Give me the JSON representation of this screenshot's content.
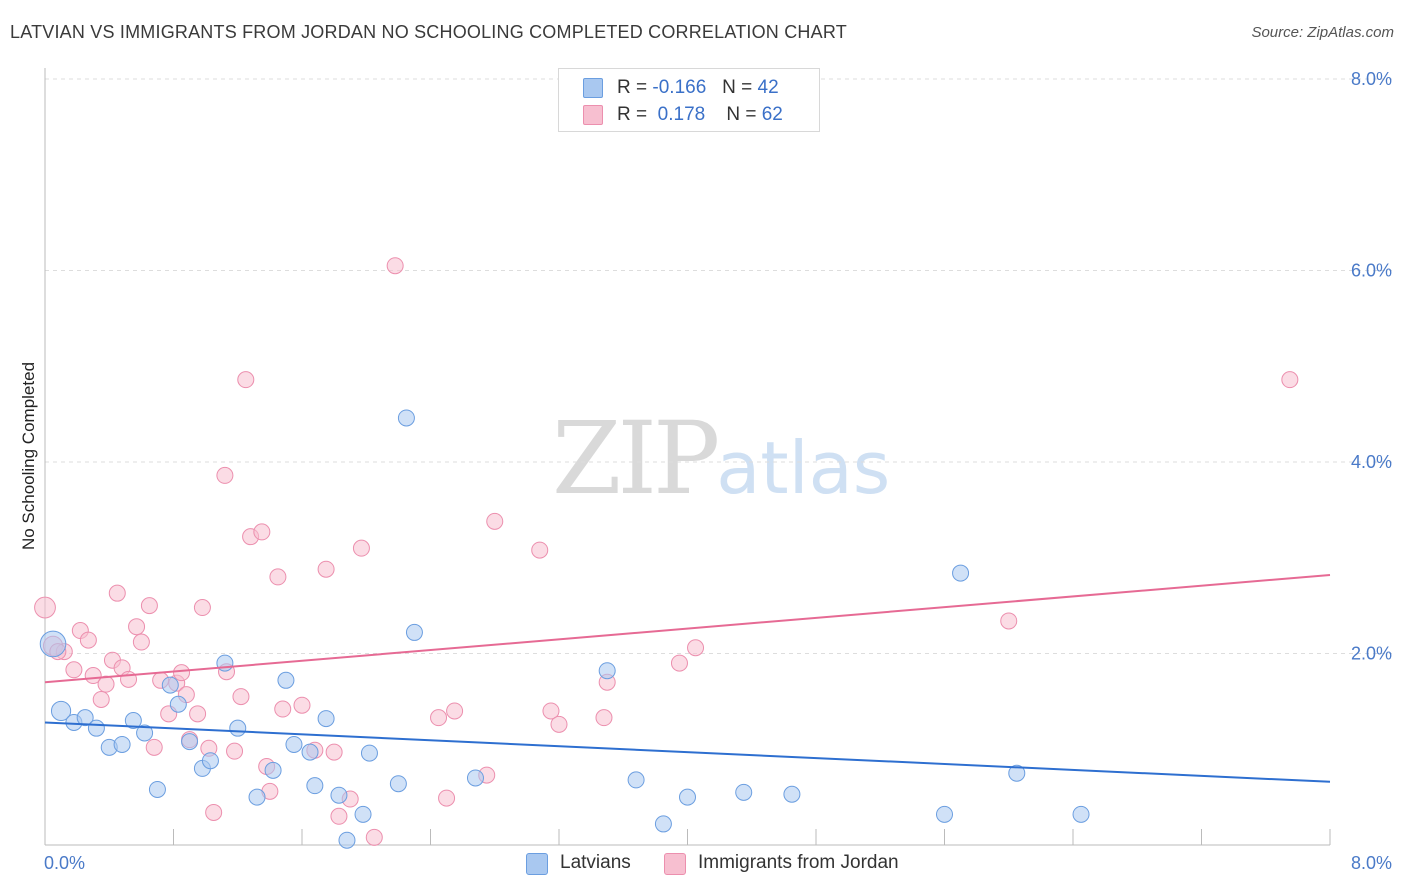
{
  "title": "LATVIAN VS IMMIGRANTS FROM JORDAN NO SCHOOLING COMPLETED CORRELATION CHART",
  "source": "Source: ZipAtlas.com",
  "watermark": {
    "zip": "ZIP",
    "atlas": "atlas"
  },
  "legend": {
    "row1": {
      "r_label": "R =",
      "r_value": "-0.166",
      "n_label": "N =",
      "n_value": "42"
    },
    "row2": {
      "r_label": "R =",
      "r_value": "0.178",
      "n_label": "N =",
      "n_value": "62"
    }
  },
  "bottom_legend": {
    "series1": "Latvians",
    "series2": "Immigrants from Jordan"
  },
  "colors": {
    "latvians_fill": "#a9c8f0",
    "latvians_stroke": "#6b9ee0",
    "latvians_line": "#2e6fd0",
    "jordan_fill": "#f7bfd0",
    "jordan_stroke": "#ec8fae",
    "jordan_line": "#e66a94",
    "tick_text": "#4a7ac8",
    "grid": "#dddddd"
  },
  "chart_data": {
    "type": "scatter",
    "title": "LATVIAN VS IMMIGRANTS FROM JORDAN NO SCHOOLING COMPLETED CORRELATION CHART",
    "xlabel": "",
    "ylabel": "No Schooling Completed",
    "xlim": [
      0,
      8.0
    ],
    "ylim": [
      0,
      8.0
    ],
    "x_tick_labels": [
      "0.0%",
      "8.0%"
    ],
    "y_ticks": [
      2.0,
      4.0,
      6.0,
      8.0
    ],
    "y_tick_labels": [
      "2.0%",
      "4.0%",
      "6.0%",
      "8.0%"
    ],
    "grid": "horizontal dashed",
    "legend_position": "top-center",
    "series": [
      {
        "name": "Latvians",
        "r": -0.166,
        "n": 42,
        "trend": {
          "x": [
            0.0,
            8.0
          ],
          "y": [
            1.28,
            0.66
          ]
        },
        "points": [
          [
            0.05,
            2.1,
            1.6
          ],
          [
            0.1,
            1.4,
            1.2
          ],
          [
            0.18,
            1.28,
            1
          ],
          [
            0.25,
            1.33,
            1
          ],
          [
            0.32,
            1.22,
            1
          ],
          [
            0.4,
            1.02,
            1
          ],
          [
            0.48,
            1.05,
            1
          ],
          [
            0.55,
            1.3,
            1
          ],
          [
            0.62,
            1.17,
            1
          ],
          [
            0.7,
            0.58,
            1
          ],
          [
            0.78,
            1.67,
            1
          ],
          [
            0.83,
            1.47,
            1
          ],
          [
            0.9,
            1.08,
            1
          ],
          [
            0.98,
            0.8,
            1
          ],
          [
            1.03,
            0.88,
            1
          ],
          [
            1.12,
            1.9,
            1
          ],
          [
            1.2,
            1.22,
            1
          ],
          [
            1.32,
            0.5,
            1
          ],
          [
            1.42,
            0.78,
            1
          ],
          [
            1.5,
            1.72,
            1
          ],
          [
            1.55,
            1.05,
            1
          ],
          [
            1.65,
            0.97,
            1
          ],
          [
            1.68,
            0.62,
            1
          ],
          [
            1.75,
            1.32,
            1
          ],
          [
            1.83,
            0.52,
            1
          ],
          [
            1.88,
            0.05,
            1
          ],
          [
            1.98,
            0.32,
            1
          ],
          [
            2.02,
            0.96,
            1
          ],
          [
            2.2,
            0.64,
            1
          ],
          [
            2.25,
            4.46,
            1
          ],
          [
            2.3,
            2.22,
            1
          ],
          [
            2.68,
            0.7,
            1
          ],
          [
            3.5,
            1.82,
            1
          ],
          [
            3.68,
            0.68,
            1
          ],
          [
            3.85,
            0.22,
            1
          ],
          [
            4.0,
            0.5,
            1
          ],
          [
            4.35,
            0.55,
            1
          ],
          [
            4.65,
            0.53,
            1
          ],
          [
            5.6,
            0.32,
            1
          ],
          [
            5.7,
            2.84,
            1
          ],
          [
            6.05,
            0.75,
            1
          ],
          [
            6.45,
            0.32,
            1
          ]
        ]
      },
      {
        "name": "Immigrants from Jordan",
        "r": 0.178,
        "n": 62,
        "trend": {
          "x": [
            0.0,
            8.0
          ],
          "y": [
            1.7,
            2.82
          ]
        },
        "points": [
          [
            0.0,
            2.48,
            1.3
          ],
          [
            0.05,
            2.08,
            1.2
          ],
          [
            0.12,
            2.02,
            1
          ],
          [
            0.18,
            1.83,
            1
          ],
          [
            0.22,
            2.24,
            1
          ],
          [
            0.27,
            2.14,
            1
          ],
          [
            0.3,
            1.77,
            1
          ],
          [
            0.35,
            1.52,
            1
          ],
          [
            0.38,
            1.68,
            1
          ],
          [
            0.42,
            1.93,
            1
          ],
          [
            0.45,
            2.63,
            1
          ],
          [
            0.48,
            1.85,
            1
          ],
          [
            0.52,
            1.73,
            1
          ],
          [
            0.57,
            2.28,
            1
          ],
          [
            0.6,
            2.12,
            1
          ],
          [
            0.65,
            2.5,
            1
          ],
          [
            0.68,
            1.02,
            1
          ],
          [
            0.72,
            1.72,
            1
          ],
          [
            0.77,
            1.37,
            1
          ],
          [
            0.82,
            1.69,
            1
          ],
          [
            0.85,
            1.8,
            1
          ],
          [
            0.88,
            1.57,
            1
          ],
          [
            0.9,
            1.1,
            1
          ],
          [
            0.95,
            1.37,
            1
          ],
          [
            0.98,
            2.48,
            1
          ],
          [
            1.02,
            1.01,
            1
          ],
          [
            1.05,
            0.34,
            1
          ],
          [
            1.12,
            3.86,
            1
          ],
          [
            1.13,
            1.81,
            1
          ],
          [
            1.18,
            0.98,
            1
          ],
          [
            1.22,
            1.55,
            1
          ],
          [
            1.25,
            4.86,
            1
          ],
          [
            1.28,
            3.22,
            1
          ],
          [
            1.35,
            3.27,
            1
          ],
          [
            1.38,
            0.82,
            1
          ],
          [
            1.4,
            0.56,
            1
          ],
          [
            1.45,
            2.8,
            1
          ],
          [
            1.48,
            1.42,
            1
          ],
          [
            1.6,
            1.46,
            1
          ],
          [
            1.68,
            0.99,
            1
          ],
          [
            1.75,
            2.88,
            1
          ],
          [
            1.8,
            0.97,
            1
          ],
          [
            1.83,
            0.3,
            1
          ],
          [
            1.9,
            0.48,
            1
          ],
          [
            1.97,
            3.1,
            1
          ],
          [
            2.05,
            0.08,
            1
          ],
          [
            2.18,
            6.05,
            1
          ],
          [
            2.45,
            1.33,
            1
          ],
          [
            2.5,
            0.49,
            1
          ],
          [
            2.55,
            1.4,
            1
          ],
          [
            2.75,
            0.73,
            1
          ],
          [
            2.8,
            3.38,
            1
          ],
          [
            3.08,
            3.08,
            1
          ],
          [
            3.15,
            1.4,
            1
          ],
          [
            3.2,
            1.26,
            1
          ],
          [
            3.48,
            1.33,
            1
          ],
          [
            3.5,
            1.7,
            1
          ],
          [
            3.95,
            1.9,
            1
          ],
          [
            4.05,
            2.06,
            1
          ],
          [
            6.0,
            2.34,
            1
          ],
          [
            7.75,
            4.86,
            1
          ],
          [
            0.08,
            2.02,
            1
          ]
        ]
      }
    ]
  }
}
